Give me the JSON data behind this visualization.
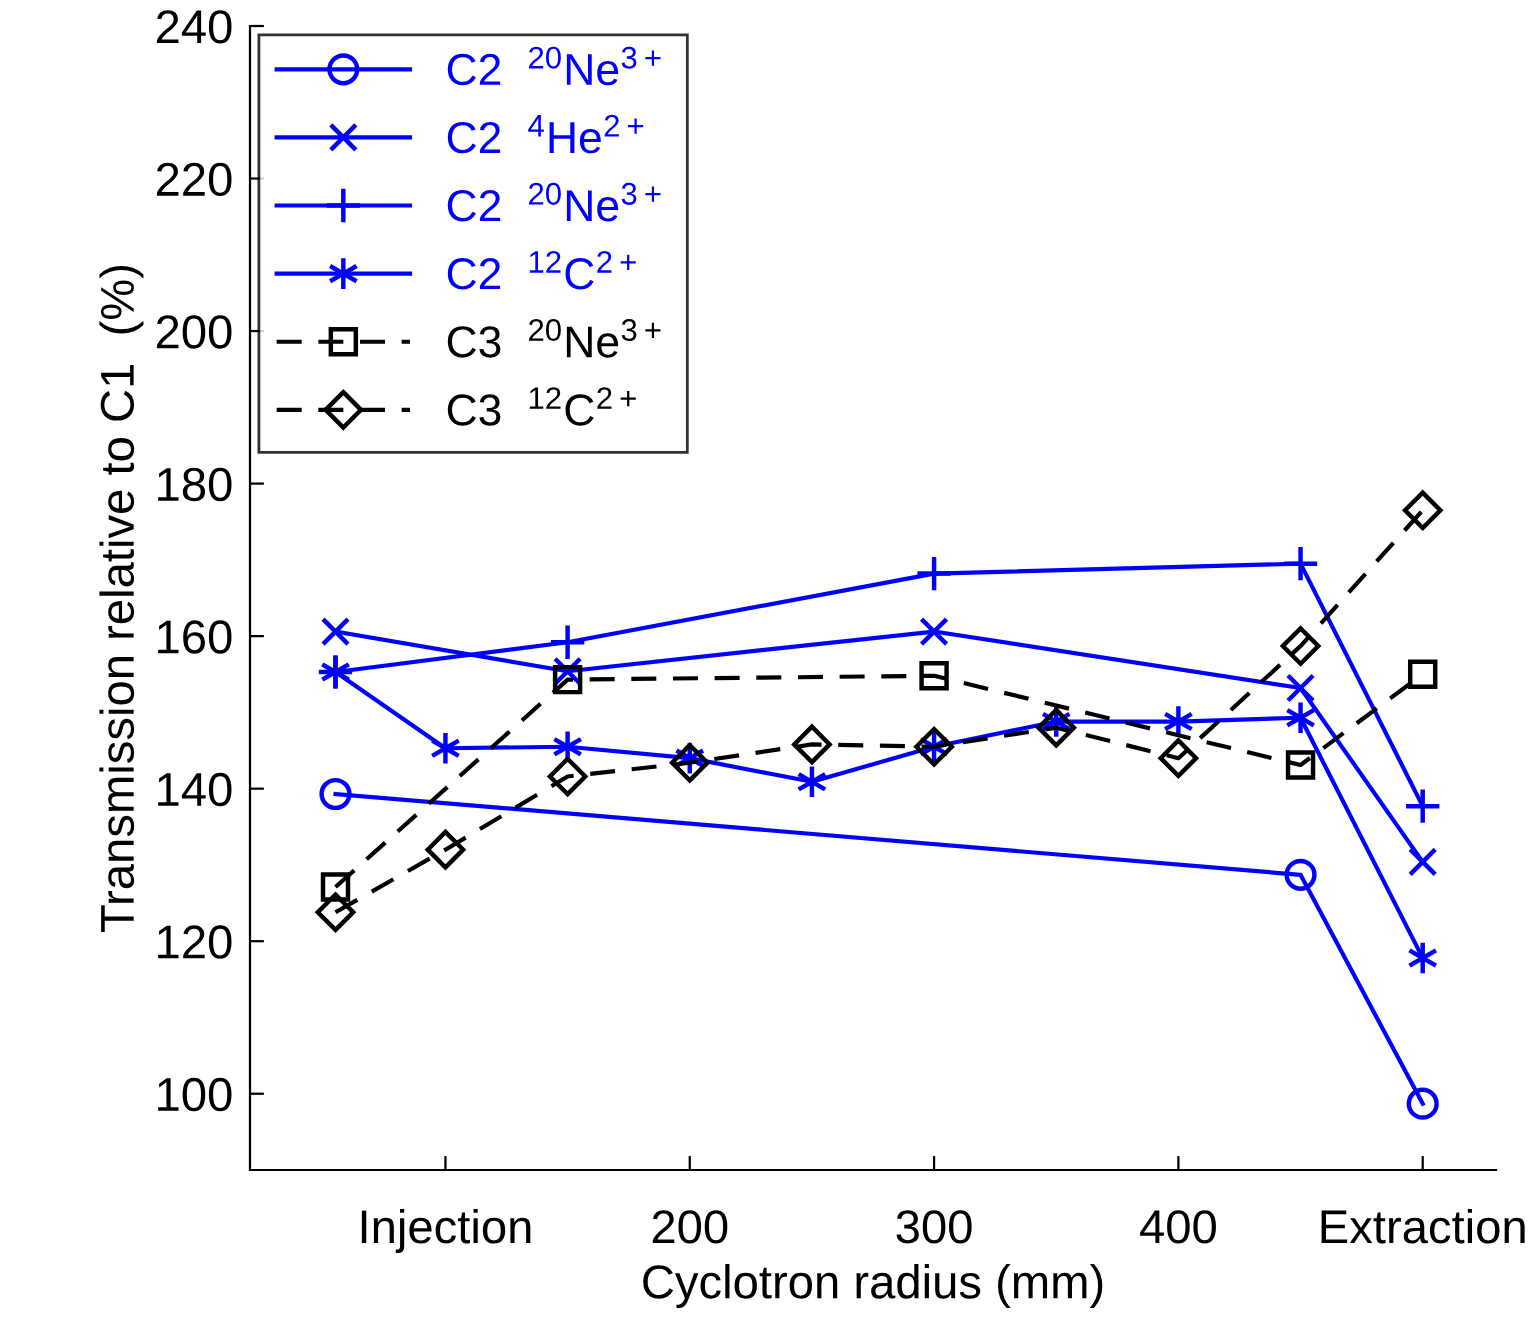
{
  "chart_data": {
    "type": "line",
    "xlabel": "Cyclotron radius (mm)",
    "ylabel": "Transmission relative to C1  (%)",
    "xlim": [
      20,
      530
    ],
    "ylim": [
      90,
      240
    ],
    "xticks": [
      {
        "value": 100,
        "label": "Injection"
      },
      200,
      300,
      400,
      {
        "value": 500,
        "label": "Extraction"
      }
    ],
    "yticks": [
      100,
      120,
      140,
      160,
      180,
      200,
      220,
      240
    ],
    "grid": false,
    "legend": "top left",
    "series": [
      {
        "name": "C2  $^{20}$Ne$^{3+}$",
        "color": "#0000ff",
        "marker": "circle",
        "line_style": "solid",
        "x": [
          55,
          450,
          500
        ],
        "values": [
          139.3,
          128.7,
          98.7
        ]
      },
      {
        "name": "C2  $^{4}$He$^{2+}$",
        "color": "#0000ff",
        "marker": "cross",
        "line_style": "solid",
        "x": [
          55,
          150,
          300,
          450,
          500
        ],
        "values": [
          160.6,
          155.4,
          160.6,
          153.2,
          130.4
        ]
      },
      {
        "name": "C2  $^{20}$Ne$^{3+}$",
        "color": "#0000ff",
        "marker": "cross",
        "line_style": "solid",
        "x": [
          55,
          150,
          300,
          450,
          500
        ],
        "values": [
          155.3,
          159.2,
          168.2,
          169.5,
          137.7
        ]
      },
      {
        "name": "C2  $^{12}$C$^{2+}$",
        "color": "#0000ff",
        "marker": "cross",
        "line_style": "solid",
        "x": [
          55,
          100,
          150,
          200,
          250,
          300,
          350,
          400,
          450,
          500
        ],
        "values": [
          155.3,
          145.3,
          145.5,
          144.0,
          140.9,
          145.5,
          148.8,
          148.8,
          149.3,
          117.8
        ]
      },
      {
        "name": "C3  $^{20}$Ne$^{3+}$",
        "color": "#000000",
        "marker": "square",
        "line_style": "dashed",
        "x": [
          55,
          150,
          300,
          450,
          500
        ],
        "values": [
          127.1,
          154.3,
          154.8,
          143.1,
          155.0
        ]
      },
      {
        "name": "C3  $^{12}$C$^{2+}$",
        "color": "#000000",
        "marker": "diamond",
        "line_style": "dashed",
        "x": [
          55,
          100,
          150,
          200,
          250,
          300,
          350,
          400,
          450,
          500
        ],
        "values": [
          123.8,
          132.0,
          141.6,
          143.4,
          145.8,
          145.5,
          148.0,
          144.0,
          158.7,
          176.5
        ]
      }
    ]
  }
}
